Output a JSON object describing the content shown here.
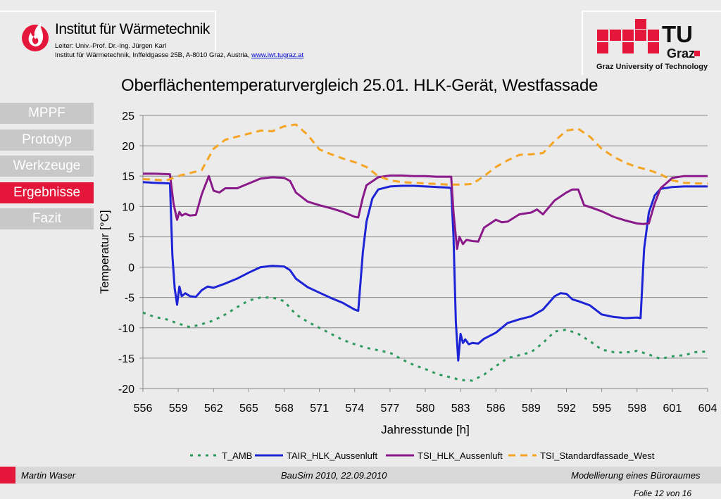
{
  "header": {
    "institute_title": "Institut für Wärmetechnik",
    "leader_line": "Leiter: Univ.-Prof. Dr.-Ing. Jürgen Karl",
    "address_line": "Institut für Wärmetechnik, Inffeldgasse 25B, A-8010 Graz, Austria,",
    "link_text": "www.iwt.tugraz.at",
    "tu_caption": "Graz University of Technology",
    "tu_logo_text": "TU",
    "tu_logo_sub": "Graz"
  },
  "nav": {
    "items": [
      {
        "label": "MPPF",
        "active": false
      },
      {
        "label": "Prototyp",
        "active": false
      },
      {
        "label": "Werkzeuge",
        "active": false
      },
      {
        "label": "Ergebnisse",
        "active": true
      },
      {
        "label": "Fazit",
        "active": false
      }
    ]
  },
  "footer": {
    "author": "Martin Waser",
    "event": "BauSim 2010, 22.09.2010",
    "topic": "Modellierung eines Büroraumes",
    "page": "Folie 12 von 16"
  },
  "chart_data": {
    "type": "line",
    "title": "Oberflächentemperaturvergleich 25.01. HLK-Gerät, Westfassade",
    "xlabel": "Jahresstunde [h]",
    "ylabel": "Temperatur [°C]",
    "xlim": [
      556,
      604
    ],
    "ylim": [
      -20,
      25
    ],
    "xticks": [
      556,
      559,
      562,
      565,
      568,
      571,
      574,
      577,
      580,
      583,
      586,
      589,
      592,
      595,
      598,
      601,
      604
    ],
    "yticks": [
      25,
      20,
      15,
      10,
      5,
      0,
      -5,
      -10,
      -15,
      -20
    ],
    "grid": "horizontal",
    "legend_position": "bottom",
    "series": [
      {
        "name": "T_AMB",
        "color": "#2e9a5e",
        "dash": "dotted",
        "points": [
          [
            556,
            -7.5
          ],
          [
            557,
            -8.2
          ],
          [
            558,
            -8.6
          ],
          [
            559,
            -9.3
          ],
          [
            560,
            -9.9
          ],
          [
            561,
            -9.4
          ],
          [
            562,
            -8.8
          ],
          [
            563,
            -7.8
          ],
          [
            564,
            -6.6
          ],
          [
            565,
            -5.5
          ],
          [
            566,
            -5.0
          ],
          [
            567,
            -5.0
          ],
          [
            568,
            -5.6
          ],
          [
            569,
            -7.8
          ],
          [
            570,
            -9.0
          ],
          [
            571,
            -10.0
          ],
          [
            572,
            -11.0
          ],
          [
            573,
            -12.0
          ],
          [
            574,
            -12.7
          ],
          [
            575,
            -13.3
          ],
          [
            576,
            -13.7
          ],
          [
            577,
            -14.1
          ],
          [
            578,
            -15.2
          ],
          [
            579,
            -16.1
          ],
          [
            580,
            -16.8
          ],
          [
            581,
            -17.6
          ],
          [
            582,
            -18.1
          ],
          [
            583,
            -18.6
          ],
          [
            584,
            -18.7
          ],
          [
            585,
            -17.7
          ],
          [
            586,
            -16.3
          ],
          [
            587,
            -15.0
          ],
          [
            588,
            -14.5
          ],
          [
            589,
            -14.0
          ],
          [
            590,
            -12.5
          ],
          [
            591,
            -10.6
          ],
          [
            592,
            -10.3
          ],
          [
            593,
            -11.0
          ],
          [
            594,
            -12.2
          ],
          [
            595,
            -13.6
          ],
          [
            596,
            -14.0
          ],
          [
            597,
            -14.1
          ],
          [
            598,
            -13.8
          ],
          [
            599,
            -14.4
          ],
          [
            600,
            -15.1
          ],
          [
            601,
            -14.7
          ],
          [
            602,
            -14.5
          ],
          [
            603,
            -14.0
          ],
          [
            604,
            -13.9
          ]
        ]
      },
      {
        "name": "TAIR_HLK_Aussenluft",
        "color": "#1c24d6",
        "dash": "solid",
        "points": [
          [
            556,
            14.0
          ],
          [
            557,
            13.9
          ],
          [
            558.3,
            13.8
          ],
          [
            558.5,
            2.0
          ],
          [
            558.7,
            -3.5
          ],
          [
            558.9,
            -6.2
          ],
          [
            559.1,
            -3.2
          ],
          [
            559.3,
            -4.8
          ],
          [
            559.6,
            -4.3
          ],
          [
            560,
            -4.8
          ],
          [
            560.5,
            -4.9
          ],
          [
            561,
            -3.8
          ],
          [
            561.5,
            -3.2
          ],
          [
            562,
            -3.4
          ],
          [
            563,
            -2.7
          ],
          [
            564,
            -1.9
          ],
          [
            565,
            -0.9
          ],
          [
            566,
            0.0
          ],
          [
            567,
            0.2
          ],
          [
            568,
            0.1
          ],
          [
            568.5,
            -0.5
          ],
          [
            569,
            -1.9
          ],
          [
            570,
            -3.3
          ],
          [
            571,
            -4.2
          ],
          [
            572,
            -5.1
          ],
          [
            573,
            -5.9
          ],
          [
            574,
            -7.0
          ],
          [
            574.3,
            -7.2
          ],
          [
            574.7,
            2.5
          ],
          [
            575,
            7.5
          ],
          [
            575.5,
            11.3
          ],
          [
            576,
            12.8
          ],
          [
            577,
            13.3
          ],
          [
            578,
            13.4
          ],
          [
            579,
            13.4
          ],
          [
            580,
            13.3
          ],
          [
            581,
            13.2
          ],
          [
            582,
            13.1
          ],
          [
            582.2,
            13.0
          ],
          [
            582.4,
            5.0
          ],
          [
            582.6,
            -9.0
          ],
          [
            582.8,
            -15.4
          ],
          [
            583,
            -11.0
          ],
          [
            583.2,
            -12.5
          ],
          [
            583.4,
            -11.9
          ],
          [
            583.7,
            -12.7
          ],
          [
            584,
            -12.5
          ],
          [
            584.5,
            -12.6
          ],
          [
            585,
            -11.8
          ],
          [
            586,
            -10.8
          ],
          [
            587,
            -9.2
          ],
          [
            588,
            -8.6
          ],
          [
            589,
            -8.1
          ],
          [
            590,
            -7.0
          ],
          [
            591,
            -4.8
          ],
          [
            591.5,
            -4.3
          ],
          [
            592,
            -4.4
          ],
          [
            592.5,
            -5.3
          ],
          [
            593,
            -5.6
          ],
          [
            594,
            -6.3
          ],
          [
            595,
            -7.8
          ],
          [
            596,
            -8.2
          ],
          [
            597,
            -8.4
          ],
          [
            598,
            -8.3
          ],
          [
            598.3,
            -8.4
          ],
          [
            598.6,
            3.0
          ],
          [
            599,
            9.0
          ],
          [
            599.5,
            11.8
          ],
          [
            600,
            12.9
          ],
          [
            601,
            13.2
          ],
          [
            602,
            13.3
          ],
          [
            603,
            13.3
          ],
          [
            604,
            13.3
          ]
        ]
      },
      {
        "name": "TSI_HLK_Aussenluft",
        "color": "#8a1a8a",
        "dash": "solid",
        "points": [
          [
            556,
            15.4
          ],
          [
            557,
            15.4
          ],
          [
            558.3,
            15.3
          ],
          [
            558.6,
            10.5
          ],
          [
            558.9,
            7.8
          ],
          [
            559.1,
            9.1
          ],
          [
            559.3,
            8.5
          ],
          [
            559.6,
            8.8
          ],
          [
            560,
            8.5
          ],
          [
            560.5,
            8.6
          ],
          [
            561,
            12.0
          ],
          [
            561.6,
            15.0
          ],
          [
            562,
            12.6
          ],
          [
            562.5,
            12.3
          ],
          [
            563,
            13.0
          ],
          [
            564,
            13.0
          ],
          [
            565,
            13.8
          ],
          [
            566,
            14.6
          ],
          [
            567,
            14.8
          ],
          [
            568,
            14.7
          ],
          [
            568.5,
            14.2
          ],
          [
            569,
            12.3
          ],
          [
            570,
            10.8
          ],
          [
            571,
            10.2
          ],
          [
            572,
            9.7
          ],
          [
            573,
            9.1
          ],
          [
            574,
            8.3
          ],
          [
            574.3,
            8.2
          ],
          [
            574.7,
            11.5
          ],
          [
            575,
            13.5
          ],
          [
            576,
            14.8
          ],
          [
            577,
            15.1
          ],
          [
            578,
            15.1
          ],
          [
            579,
            15.0
          ],
          [
            580,
            15.0
          ],
          [
            581,
            14.9
          ],
          [
            582.2,
            14.9
          ],
          [
            582.4,
            9.0
          ],
          [
            582.7,
            3.0
          ],
          [
            582.9,
            5.0
          ],
          [
            583.2,
            3.8
          ],
          [
            583.5,
            4.5
          ],
          [
            584,
            4.3
          ],
          [
            584.5,
            4.2
          ],
          [
            585,
            6.5
          ],
          [
            586,
            7.8
          ],
          [
            586.5,
            7.4
          ],
          [
            587,
            7.5
          ],
          [
            588,
            8.7
          ],
          [
            589,
            9.0
          ],
          [
            589.5,
            9.5
          ],
          [
            590,
            8.7
          ],
          [
            591,
            11.0
          ],
          [
            592,
            12.3
          ],
          [
            592.5,
            12.8
          ],
          [
            593,
            12.8
          ],
          [
            593.5,
            10.2
          ],
          [
            594,
            9.9
          ],
          [
            595,
            9.2
          ],
          [
            596,
            8.3
          ],
          [
            597,
            7.7
          ],
          [
            598,
            7.2
          ],
          [
            598.5,
            7.1
          ],
          [
            599,
            7.2
          ],
          [
            599.5,
            10.5
          ],
          [
            600,
            13.0
          ],
          [
            601,
            14.7
          ],
          [
            602,
            15.0
          ],
          [
            603,
            15.0
          ],
          [
            604,
            15.0
          ]
        ]
      },
      {
        "name": "TSI_Standardfassade_West",
        "color": "#f5a524",
        "dash": "dashed",
        "points": [
          [
            556,
            14.5
          ],
          [
            557,
            14.4
          ],
          [
            558,
            14.3
          ],
          [
            559,
            15.0
          ],
          [
            560,
            15.5
          ],
          [
            561,
            16.0
          ],
          [
            562,
            19.5
          ],
          [
            563,
            21.0
          ],
          [
            564,
            21.5
          ],
          [
            565,
            22.0
          ],
          [
            566,
            22.5
          ],
          [
            567,
            22.4
          ],
          [
            568,
            23.2
          ],
          [
            569,
            23.5
          ],
          [
            570,
            21.8
          ],
          [
            571,
            19.4
          ],
          [
            572,
            18.6
          ],
          [
            573,
            17.9
          ],
          [
            574,
            17.3
          ],
          [
            575,
            16.5
          ],
          [
            576,
            15.0
          ],
          [
            577,
            14.3
          ],
          [
            578,
            14.0
          ],
          [
            579,
            13.9
          ],
          [
            580,
            13.8
          ],
          [
            581,
            13.7
          ],
          [
            582,
            13.6
          ],
          [
            583,
            13.6
          ],
          [
            584,
            13.7
          ],
          [
            585,
            15.0
          ],
          [
            586,
            16.5
          ],
          [
            587,
            17.6
          ],
          [
            588,
            18.5
          ],
          [
            589,
            18.6
          ],
          [
            590,
            18.8
          ],
          [
            591,
            20.8
          ],
          [
            592,
            22.5
          ],
          [
            593,
            22.8
          ],
          [
            594,
            21.5
          ],
          [
            595,
            19.5
          ],
          [
            596,
            18.2
          ],
          [
            597,
            17.2
          ],
          [
            598,
            16.5
          ],
          [
            599,
            16.0
          ],
          [
            600,
            15.3
          ],
          [
            601,
            14.3
          ],
          [
            602,
            13.9
          ],
          [
            603,
            13.8
          ],
          [
            604,
            13.8
          ]
        ]
      }
    ]
  }
}
